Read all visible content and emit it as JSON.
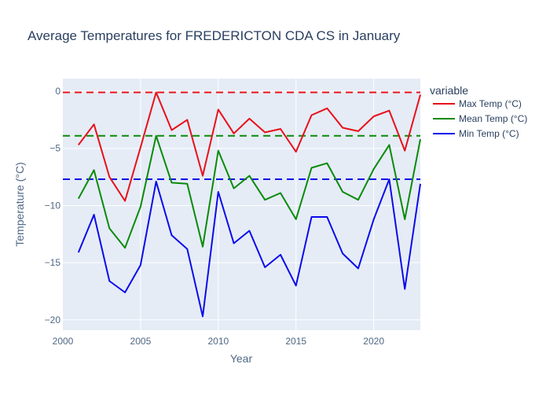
{
  "chart_data": {
    "type": "line",
    "title": "Average Temperatures for FREDERICTON CDA CS in January",
    "xlabel": "Year",
    "ylabel": "Temperature (°C)",
    "xlim": [
      2000,
      2023
    ],
    "ylim": [
      -20.9,
      1.1
    ],
    "x_ticks": [
      2000,
      2005,
      2010,
      2015,
      2020
    ],
    "y_ticks": [
      0,
      -5,
      -10,
      -15,
      -20
    ],
    "grid": true,
    "legend": {
      "title": "variable",
      "placement": "right"
    },
    "x": [
      2001,
      2002,
      2003,
      2004,
      2005,
      2006,
      2007,
      2008,
      2009,
      2010,
      2011,
      2012,
      2013,
      2014,
      2015,
      2016,
      2017,
      2018,
      2019,
      2020,
      2021,
      2022,
      2023
    ],
    "series": [
      {
        "name": "Max Temp (°C)",
        "color": "#e8101a",
        "values": [
          -4.7,
          -2.9,
          -7.5,
          -9.6,
          -4.9,
          -0.1,
          -3.4,
          -2.5,
          -7.4,
          -1.6,
          -3.7,
          -2.4,
          -3.6,
          -3.3,
          -5.3,
          -2.1,
          -1.5,
          -3.2,
          -3.5,
          -2.2,
          -1.7,
          -5.2,
          -0.3
        ]
      },
      {
        "name": "Mean Temp (°C)",
        "color": "#0a8a0a",
        "values": [
          -9.4,
          -6.9,
          -12.0,
          -13.7,
          -10.1,
          -3.9,
          -8.0,
          -8.1,
          -13.6,
          -5.2,
          -8.5,
          -7.4,
          -9.5,
          -8.9,
          -11.2,
          -6.7,
          -6.3,
          -8.8,
          -9.5,
          -6.8,
          -4.7,
          -11.2,
          -4.2
        ]
      },
      {
        "name": "Min Temp (°C)",
        "color": "#0b0bea",
        "values": [
          -14.1,
          -10.8,
          -16.6,
          -17.6,
          -15.2,
          -7.9,
          -12.6,
          -13.8,
          -19.7,
          -8.8,
          -13.3,
          -12.2,
          -15.4,
          -14.3,
          -17.0,
          -11.0,
          -11.0,
          -14.2,
          -15.5,
          -11.2,
          -7.7,
          -17.3,
          -8.1
        ]
      }
    ],
    "reference_lines": [
      {
        "series": "Max Temp (°C)",
        "value": -0.1,
        "color": "#e8101a",
        "style": "dashed"
      },
      {
        "series": "Mean Temp (°C)",
        "value": -3.9,
        "color": "#0a8a0a",
        "style": "dashed"
      },
      {
        "series": "Min Temp (°C)",
        "value": -7.7,
        "color": "#0b0bea",
        "style": "dashed"
      }
    ],
    "colors": {
      "plot_bg": "#e5ecf6",
      "grid": "#ffffff",
      "text": "#2a3f5f",
      "tick_text": "#506784"
    }
  }
}
